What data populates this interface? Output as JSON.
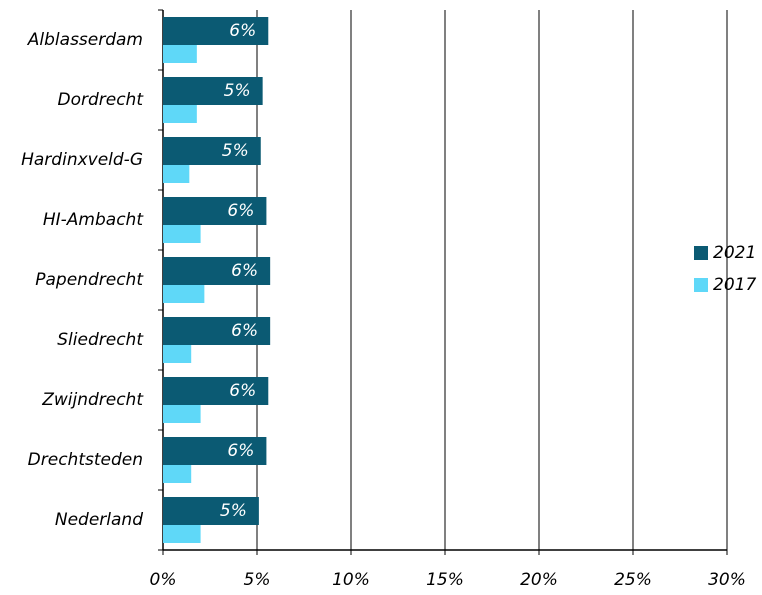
{
  "chart_data": {
    "type": "bar",
    "orientation": "horizontal",
    "categories": [
      "Alblasserdam",
      "Dordrecht",
      "Hardinxveld-G",
      "HI-Ambacht",
      "Papendrecht",
      "Sliedrecht",
      "Zwijndrecht",
      "Drechtsteden",
      "Nederland"
    ],
    "series": [
      {
        "name": "2021",
        "color": "#0b5a73",
        "values": [
          5.6,
          5.3,
          5.2,
          5.5,
          5.7,
          5.7,
          5.6,
          5.5,
          5.1
        ],
        "value_labels": [
          "6%",
          "5%",
          "5%",
          "6%",
          "6%",
          "6%",
          "6%",
          "6%",
          "5%"
        ]
      },
      {
        "name": "2017",
        "color": "#5fd8f8",
        "values": [
          1.8,
          1.8,
          1.4,
          2.0,
          2.2,
          1.5,
          2.0,
          1.5,
          2.0
        ]
      }
    ],
    "xlim": [
      0,
      30
    ],
    "xticks": [
      {
        "value": 0,
        "label": "0%"
      },
      {
        "value": 5,
        "label": "5%"
      },
      {
        "value": 10,
        "label": "10%"
      },
      {
        "value": 15,
        "label": "15%"
      },
      {
        "value": 20,
        "label": "20%"
      },
      {
        "value": 25,
        "label": "25%"
      },
      {
        "value": 30,
        "label": "30%"
      }
    ],
    "grid": true,
    "legend": "right"
  }
}
